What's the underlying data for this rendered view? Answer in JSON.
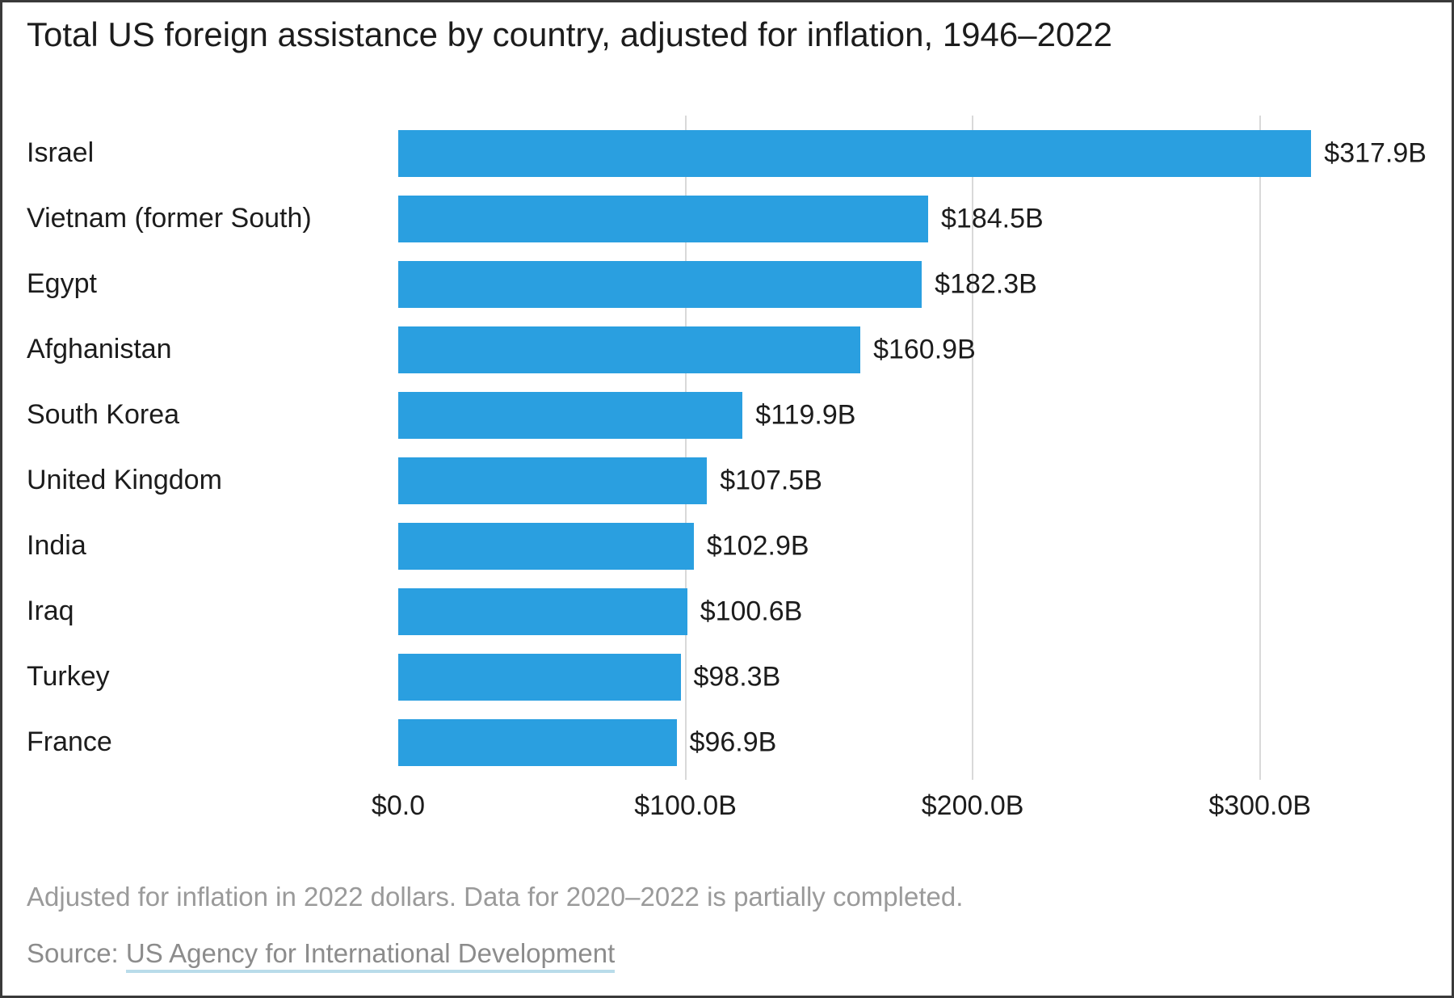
{
  "figure": {
    "title": "Total US foreign assistance by country, adjusted for inflation, 1946–2022",
    "note": "Adjusted for inflation in 2022 dollars. Data for 2020–2022 is partially completed.",
    "source_prefix": "Source: ",
    "source_link_text": "US Agency for International Development"
  },
  "chart_data": {
    "type": "bar",
    "orientation": "horizontal",
    "title": "Total US foreign assistance by country, adjusted for inflation, 1946–2022",
    "xlabel": "",
    "ylabel": "",
    "categories": [
      "Israel",
      "Vietnam (former South)",
      "Egypt",
      "Afghanistan",
      "South Korea",
      "United Kingdom",
      "India",
      "Iraq",
      "Turkey",
      "France"
    ],
    "values": [
      317.9,
      184.5,
      182.3,
      160.9,
      119.9,
      107.5,
      102.9,
      100.6,
      98.3,
      96.9
    ],
    "value_labels": [
      "$317.9B",
      "$184.5B",
      "$182.3B",
      "$160.9B",
      "$119.9B",
      "$107.5B",
      "$102.9B",
      "$100.6B",
      "$98.3B",
      "$96.9B"
    ],
    "xlim": [
      0,
      360
    ],
    "x_ticks": [
      0,
      100,
      200,
      300
    ],
    "x_tick_labels": [
      "$0.0",
      "$100.0B",
      "$200.0B",
      "$300.0B"
    ],
    "grid": "vertical-gridlines-behind-bars",
    "legend": "none",
    "bar_color": "#2a9fe0",
    "gridline_color": "#d9d9d9",
    "note": "Adjusted for inflation in 2022 dollars. Data for 2020–2022 is partially completed.",
    "source": "Source: US Agency for International Development"
  }
}
